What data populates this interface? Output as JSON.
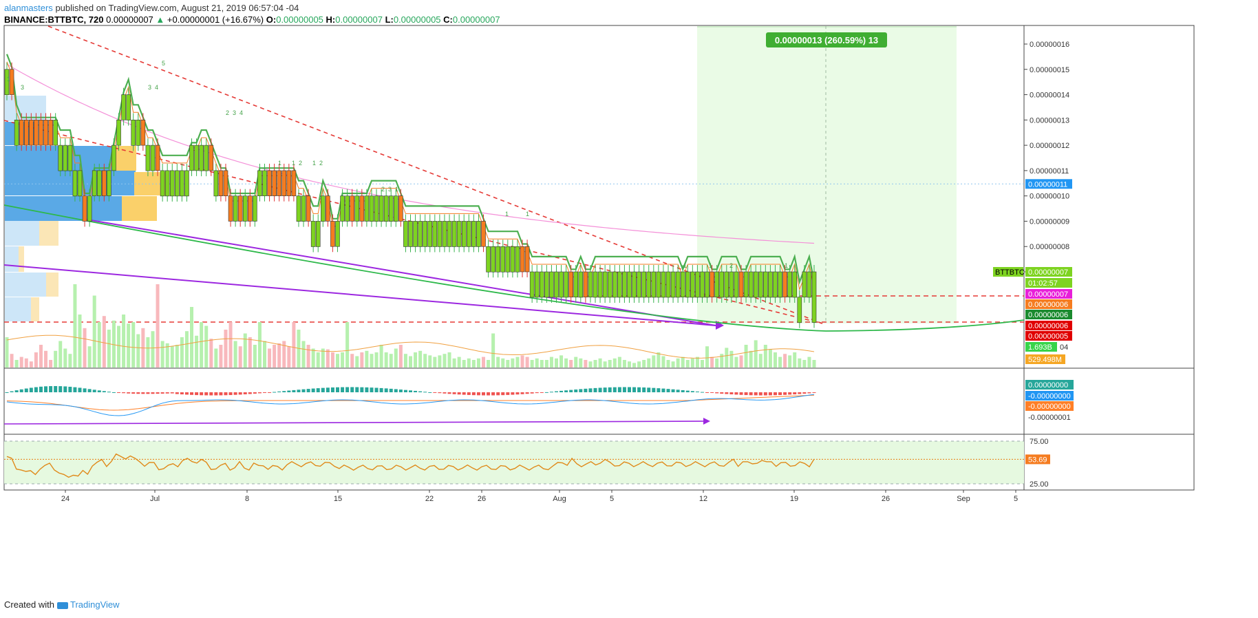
{
  "header": {
    "user": "alanmasters",
    "published_text": "published on TradingView.com, August 21, 2019 06:57:04 -04",
    "symbol": "BINANCE:BTTBTC, 720",
    "last": "0.00000007",
    "change_arrow": "▲",
    "change": "+0.00000001 (+16.67%)",
    "o_label": "O:",
    "o_value": "0.00000005",
    "h_label": "H:",
    "h_value": "0.00000007",
    "l_label": "L:",
    "l_value": "0.00000005",
    "c_label": "C:",
    "c_value": "0.00000007"
  },
  "footer": {
    "created_with": "Created with",
    "brand": "TradingView"
  },
  "colors": {
    "up": "#7ed321",
    "down": "#f57c20",
    "ema_fast": "#4caf50",
    "ema_mid": "#f57c20",
    "ema_slow": "#f48fd8",
    "trend": "#e53935",
    "purple": "#9c27e0",
    "green_line": "#2db84a",
    "macd_hist_up": "#26a69a",
    "macd_hist_down": "#ef5350",
    "macd": "#2196f3",
    "signal": "#ff7f27",
    "rsi": "#e08a1a",
    "vol_up": "#b6f0ae",
    "vol_down": "#f8b8bc"
  },
  "chart_data": {
    "type": "candlestick",
    "symbol": "BINANCE:BTTBTC",
    "interval": "720",
    "price_axis": [
      "0.00000016",
      "0.00000015",
      "0.00000014",
      "0.00000013",
      "0.00000012",
      "0.00000011",
      "0.00000010",
      "0.00000009",
      "0.00000008",
      "0.00000007"
    ],
    "ylim": [
      4.52e-08,
      1.705e-07
    ],
    "x_ticks": [
      "24",
      "Jul",
      "8",
      "15",
      "22",
      "26",
      "Aug",
      "5",
      "12",
      "19",
      "26",
      "Sep",
      "5"
    ],
    "candles": [
      {
        "o": 0.15,
        "c": 0.15
      },
      {
        "o": 0.15,
        "c": 0.14
      },
      {
        "o": 0.13,
        "c": 0.13
      },
      {
        "o": 0.13,
        "c": 0.12
      },
      {
        "o": 0.13,
        "c": 0.12
      },
      {
        "o": 0.13,
        "c": 0.12
      },
      {
        "o": 0.13,
        "c": 0.12
      },
      {
        "o": 0.13,
        "c": 0.12
      },
      {
        "o": 0.13,
        "c": 0.12
      },
      {
        "o": 0.13,
        "c": 0.12
      },
      {
        "o": 0.12,
        "c": 0.13
      },
      {
        "o": 0.12,
        "c": 0.12
      },
      {
        "o": 0.12,
        "c": 0.12
      },
      {
        "o": 0.12,
        "c": 0.12
      },
      {
        "o": 0.11,
        "c": 0.11
      },
      {
        "o": 0.11,
        "c": 0.11
      },
      {
        "o": 0.1,
        "c": 0.09
      },
      {
        "o": 0.09,
        "c": 0.1
      },
      {
        "o": 0.1,
        "c": 0.11
      },
      {
        "o": 0.1,
        "c": 0.11
      },
      {
        "o": 0.11,
        "c": 0.1
      },
      {
        "o": 0.1,
        "c": 0.11
      },
      {
        "o": 0.11,
        "c": 0.12
      },
      {
        "o": 0.12,
        "c": 0.13
      },
      {
        "o": 0.13,
        "c": 0.14
      },
      {
        "o": 0.14,
        "c": 0.14
      },
      {
        "o": 0.13,
        "c": 0.13
      },
      {
        "o": 0.13,
        "c": 0.13
      },
      {
        "o": 0.13,
        "c": 0.12
      },
      {
        "o": 0.12,
        "c": 0.12
      },
      {
        "o": 0.12,
        "c": 0.12
      },
      {
        "o": 0.12,
        "c": 0.11
      },
      {
        "o": 0.11,
        "c": 0.11
      },
      {
        "o": 0.11,
        "c": 0.11
      },
      {
        "o": 0.11,
        "c": 0.11
      },
      {
        "o": 0.11,
        "c": 0.11
      },
      {
        "o": 0.11,
        "c": 0.11
      },
      {
        "o": 0.11,
        "c": 0.11
      },
      {
        "o": 0.11,
        "c": 0.12
      },
      {
        "o": 0.11,
        "c": 0.12
      },
      {
        "o": 0.12,
        "c": 0.12
      },
      {
        "o": 0.12,
        "c": 0.12
      },
      {
        "o": 0.12,
        "c": 0.11
      },
      {
        "o": 0.11,
        "c": 0.11
      },
      {
        "o": 0.11,
        "c": 0.1
      },
      {
        "o": 0.11,
        "c": 0.1
      },
      {
        "o": 0.1,
        "c": 0.09
      },
      {
        "o": 0.09,
        "c": 0.1
      },
      {
        "o": 0.1,
        "c": 0.09
      },
      {
        "o": 0.09,
        "c": 0.1
      },
      {
        "o": 0.1,
        "c": 0.09
      },
      {
        "o": 0.09,
        "c": 0.1
      },
      {
        "o": 0.1,
        "c": 0.11
      },
      {
        "o": 0.1,
        "c": 0.11
      },
      {
        "o": 0.11,
        "c": 0.1
      },
      {
        "o": 0.11,
        "c": 0.1
      },
      {
        "o": 0.11,
        "c": 0.1
      },
      {
        "o": 0.11,
        "c": 0.1
      },
      {
        "o": 0.11,
        "c": 0.1
      },
      {
        "o": 0.11,
        "c": 0.1
      },
      {
        "o": 0.1,
        "c": 0.1
      },
      {
        "o": 0.1,
        "c": 0.1
      },
      {
        "o": 0.1,
        "c": 0.09
      },
      {
        "o": 0.09,
        "c": 0.09
      },
      {
        "o": 0.09,
        "c": 0.09
      },
      {
        "o": 0.1,
        "c": 0.1
      },
      {
        "o": 0.1,
        "c": 0.09
      },
      {
        "o": 0.09,
        "c": 0.08
      },
      {
        "o": 0.08,
        "c": 0.09
      },
      {
        "o": 0.09,
        "c": 0.1
      },
      {
        "o": 0.09,
        "c": 0.1
      },
      {
        "o": 0.1,
        "c": 0.09
      },
      {
        "o": 0.09,
        "c": 0.1
      },
      {
        "o": 0.1,
        "c": 0.09
      },
      {
        "o": 0.09,
        "c": 0.1
      },
      {
        "o": 0.1,
        "c": 0.1
      },
      {
        "o": 0.1,
        "c": 0.1
      },
      {
        "o": 0.1,
        "c": 0.1
      },
      {
        "o": 0.1,
        "c": 0.1
      },
      {
        "o": 0.1,
        "c": 0.1
      },
      {
        "o": 0.1,
        "c": 0.1
      },
      {
        "o": 0.1,
        "c": 0.09
      },
      {
        "o": 0.09,
        "c": 0.09
      },
      {
        "o": 0.09,
        "c": 0.09
      },
      {
        "o": 0.09,
        "c": 0.09
      },
      {
        "o": 0.09,
        "c": 0.09
      },
      {
        "o": 0.09,
        "c": 0.09
      },
      {
        "o": 0.09,
        "c": 0.09
      },
      {
        "o": 0.09,
        "c": 0.09
      },
      {
        "o": 0.09,
        "c": 0.09
      },
      {
        "o": 0.09,
        "c": 0.09
      },
      {
        "o": 0.09,
        "c": 0.09
      },
      {
        "o": 0.09,
        "c": 0.09
      },
      {
        "o": 0.09,
        "c": 0.09
      },
      {
        "o": 0.09,
        "c": 0.09
      },
      {
        "o": 0.09,
        "c": 0.09
      },
      {
        "o": 0.09,
        "c": 0.09
      },
      {
        "o": 0.09,
        "c": 0.09
      },
      {
        "o": 0.09,
        "c": 0.08
      },
      {
        "o": 0.08,
        "c": 0.08
      },
      {
        "o": 0.08,
        "c": 0.08
      },
      {
        "o": 0.08,
        "c": 0.08
      },
      {
        "o": 0.08,
        "c": 0.08
      },
      {
        "o": 0.08,
        "c": 0.08
      },
      {
        "o": 0.08,
        "c": 0.08
      },
      {
        "o": 0.08,
        "c": 0.08
      },
      {
        "o": 0.08,
        "c": 0.07
      },
      {
        "o": 0.08,
        "c": 0.07
      },
      {
        "o": 0.07,
        "c": 0.07
      },
      {
        "o": 0.07,
        "c": 0.07
      },
      {
        "o": 0.07,
        "c": 0.07
      },
      {
        "o": 0.07,
        "c": 0.07
      },
      {
        "o": 0.07,
        "c": 0.07
      },
      {
        "o": 0.07,
        "c": 0.07
      },
      {
        "o": 0.07,
        "c": 0.07
      },
      {
        "o": 0.07,
        "c": 0.07
      },
      {
        "o": 0.07,
        "c": 0.06
      },
      {
        "o": 0.06,
        "c": 0.07
      },
      {
        "o": 0.07,
        "c": 0.07
      },
      {
        "o": 0.07,
        "c": 0.06
      },
      {
        "o": 0.06,
        "c": 0.07
      },
      {
        "o": 0.07,
        "c": 0.07
      },
      {
        "o": 0.07,
        "c": 0.07
      },
      {
        "o": 0.07,
        "c": 0.07
      },
      {
        "o": 0.07,
        "c": 0.07
      },
      {
        "o": 0.07,
        "c": 0.07
      },
      {
        "o": 0.07,
        "c": 0.07
      },
      {
        "o": 0.07,
        "c": 0.07
      },
      {
        "o": 0.07,
        "c": 0.07
      },
      {
        "o": 0.07,
        "c": 0.07
      },
      {
        "o": 0.07,
        "c": 0.07
      },
      {
        "o": 0.07,
        "c": 0.07
      },
      {
        "o": 0.07,
        "c": 0.07
      },
      {
        "o": 0.07,
        "c": 0.07
      },
      {
        "o": 0.07,
        "c": 0.07
      },
      {
        "o": 0.07,
        "c": 0.07
      },
      {
        "o": 0.07,
        "c": 0.07
      },
      {
        "o": 0.07,
        "c": 0.07
      },
      {
        "o": 0.07,
        "c": 0.07
      },
      {
        "o": 0.06,
        "c": 0.07
      },
      {
        "o": 0.07,
        "c": 0.07
      },
      {
        "o": 0.07,
        "c": 0.07
      },
      {
        "o": 0.07,
        "c": 0.07
      },
      {
        "o": 0.07,
        "c": 0.07
      },
      {
        "o": 0.07,
        "c": 0.07
      },
      {
        "o": 0.07,
        "c": 0.06
      },
      {
        "o": 0.06,
        "c": 0.07
      },
      {
        "o": 0.07,
        "c": 0.07
      },
      {
        "o": 0.07,
        "c": 0.07
      },
      {
        "o": 0.07,
        "c": 0.07
      },
      {
        "o": 0.07,
        "c": 0.07
      },
      {
        "o": 0.07,
        "c": 0.06
      },
      {
        "o": 0.06,
        "c": 0.07
      },
      {
        "o": 0.07,
        "c": 0.07
      },
      {
        "o": 0.07,
        "c": 0.07
      },
      {
        "o": 0.07,
        "c": 0.07
      },
      {
        "o": 0.07,
        "c": 0.07
      },
      {
        "o": 0.07,
        "c": 0.07
      },
      {
        "o": 0.07,
        "c": 0.07
      },
      {
        "o": 0.07,
        "c": 0.07
      },
      {
        "o": 0.07,
        "c": 0.06
      },
      {
        "o": 0.06,
        "c": 0.07
      },
      {
        "o": 0.07,
        "c": 0.07
      },
      {
        "o": 0.06,
        "c": 0.06
      },
      {
        "o": 0.06,
        "c": 0.07
      },
      {
        "o": 0.07,
        "c": 0.07
      },
      {
        "o": 0.05,
        "c": 0.07
      }
    ],
    "price_labels": [
      {
        "name": "BTTBTC",
        "value": "0.00000007",
        "color": "#7ed321"
      },
      {
        "value": "01:02:57",
        "color": "#7ed321"
      },
      {
        "value": "0.00000007",
        "color": "#e81fd9"
      },
      {
        "value": "0.00000006",
        "color": "#f57c20"
      },
      {
        "value": "0.00000006",
        "color": "#1a8a2e"
      },
      {
        "value": "0.00000006",
        "color": "#e00000"
      },
      {
        "value": "0.00000005",
        "color": "#e00000"
      }
    ],
    "dotted_level_label": "0.00000011",
    "projection_label": "0.00000013 (260.59%) 13",
    "volume_labels": [
      "1.693B",
      "529.498M"
    ],
    "volume_axis_tail": "04",
    "macd_axis": [
      "-0.00000001"
    ],
    "macd_labels": [
      {
        "value": "0.00000000",
        "color": "#26a69a"
      },
      {
        "value": "-0.00000000",
        "color": "#2196f3"
      },
      {
        "value": "-0.00000000",
        "color": "#ff7f27"
      }
    ],
    "rsi_axis": [
      "75.00",
      "25.00"
    ],
    "rsi_value": "53.69",
    "rsi_series": [
      57,
      52,
      43,
      44,
      38,
      38,
      38,
      44,
      44,
      48,
      44,
      38,
      33,
      33,
      38,
      33,
      38,
      38,
      48,
      48,
      52,
      48,
      52,
      57,
      57,
      57,
      57,
      52,
      52,
      48,
      48,
      48,
      44,
      44,
      44,
      48,
      48,
      52,
      52,
      52,
      52,
      52,
      48,
      44,
      44,
      44,
      48,
      44,
      44,
      48,
      44,
      44,
      48,
      44,
      48,
      44,
      44,
      44,
      44,
      48,
      48,
      48,
      48,
      48,
      48,
      48,
      48,
      48,
      48,
      48,
      44,
      44,
      44,
      44,
      44,
      44,
      44,
      44,
      44,
      44,
      44,
      44,
      44,
      44,
      44,
      44,
      44,
      44,
      44,
      44,
      44,
      44,
      44,
      44,
      44,
      44,
      44,
      44,
      44,
      44,
      44,
      44,
      44,
      44,
      44,
      44,
      44,
      44,
      44,
      44,
      44,
      44,
      44,
      44,
      44,
      44,
      48,
      52,
      48,
      52,
      48,
      48,
      48,
      48,
      48,
      52,
      52,
      48,
      48,
      48,
      48,
      48,
      48,
      48,
      48,
      48,
      48,
      48,
      48,
      48,
      48,
      48,
      48,
      48,
      48,
      48,
      48,
      48,
      48,
      48,
      48,
      48,
      48,
      52,
      48,
      52,
      48,
      48,
      52,
      52,
      48,
      52,
      48,
      48,
      48,
      48,
      48,
      48,
      48,
      48,
      54
    ],
    "tick_label_count_fib": [
      "1",
      "2",
      "3",
      "4",
      "5"
    ]
  }
}
